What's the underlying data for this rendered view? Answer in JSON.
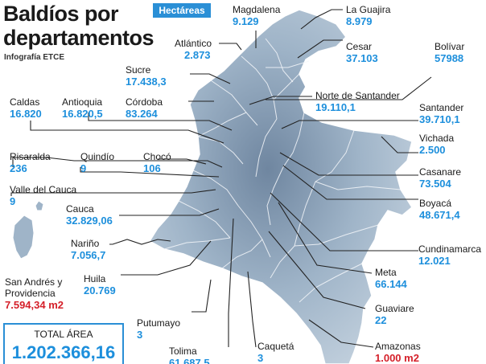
{
  "header": {
    "title_line1": "Baldíos por",
    "title_line2": "departamentos",
    "credit": "Infografía ETCE",
    "unit_badge": "Hectáreas"
  },
  "departments": {
    "magdalena": {
      "name": "Magdalena",
      "value": "9.129"
    },
    "la_guajira": {
      "name": "La Guajira",
      "value": "8.979"
    },
    "atlantico": {
      "name": "Atlántico",
      "value": "2.873"
    },
    "cesar": {
      "name": "Cesar",
      "value": "37.103"
    },
    "bolivar": {
      "name": "Bolívar",
      "value": "57988"
    },
    "sucre": {
      "name": "Sucre",
      "value": "17.438,3"
    },
    "norte_santander": {
      "name": "Norte de Santander",
      "value": "19.110,1"
    },
    "caldas": {
      "name": "Caldas",
      "value": "16.820"
    },
    "antioquia": {
      "name": "Antioquia",
      "value": "16.820,5"
    },
    "cordoba": {
      "name": "Córdoba",
      "value": "83.264"
    },
    "santander": {
      "name": "Santander",
      "value": "39.710,1"
    },
    "vichada": {
      "name": "Vichada",
      "value": "2.500"
    },
    "risaralda": {
      "name": "Risaralda",
      "value": "236"
    },
    "quindio": {
      "name": "Quindío",
      "value": "9"
    },
    "choco": {
      "name": "Chocó",
      "value": "106"
    },
    "casanare": {
      "name": "Casanare",
      "value": "73.504"
    },
    "valle": {
      "name": "Valle del Cauca",
      "value": "9"
    },
    "boyaca": {
      "name": "Boyacá",
      "value": "48.671,4"
    },
    "cauca": {
      "name": "Cauca",
      "value": "32.829,06"
    },
    "cundinamarca": {
      "name": "Cundinamarca",
      "value": "12.021"
    },
    "narino": {
      "name": "Nariño",
      "value": "7.056,7"
    },
    "meta": {
      "name": "Meta",
      "value": "66.144"
    },
    "san_andres": {
      "name_line1": "San Andrés y",
      "name_line2": "Providencia",
      "value": "7.594,34 m2"
    },
    "huila": {
      "name": "Huila",
      "value": "20.769"
    },
    "guaviare": {
      "name": "Guaviare",
      "value": "22"
    },
    "putumayo": {
      "name": "Putumayo",
      "value": "3"
    },
    "caqueta": {
      "name": "Caquetá",
      "value": "3"
    },
    "amazonas": {
      "name": "Amazonas",
      "value": "1.000 m2"
    },
    "tolima": {
      "name": "Tolima",
      "value": "61.687,5"
    }
  },
  "total": {
    "label": "TOTAL ÁREA",
    "value": "1.202.366,16"
  },
  "colors": {
    "accent": "#1d8fdc",
    "red": "#d5202a",
    "map_fill": "#9fb4c8",
    "map_stroke": "#ffffff",
    "leader": "#222222"
  }
}
